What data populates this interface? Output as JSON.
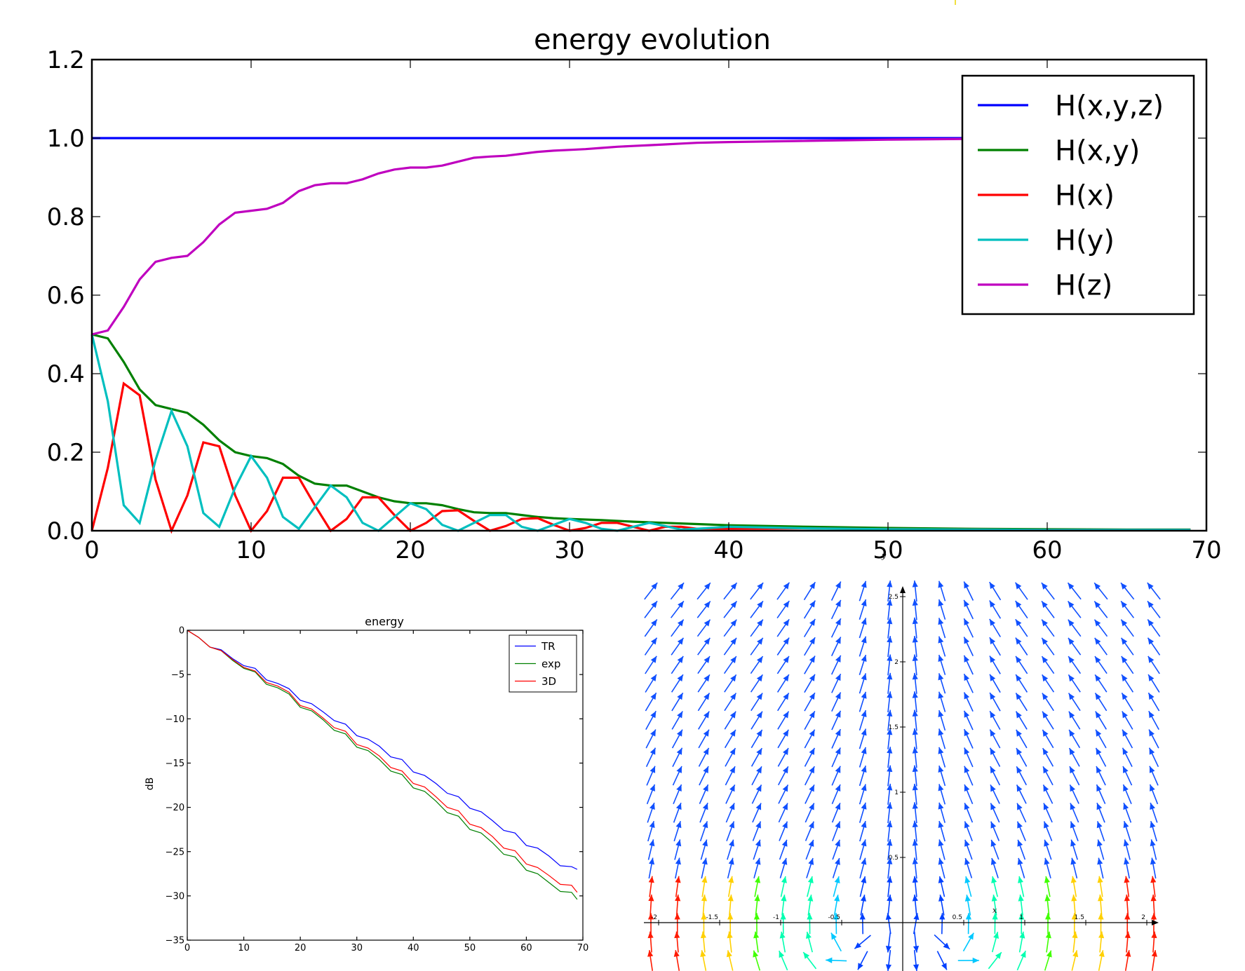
{
  "chart_data": [
    {
      "id": "energy-evolution",
      "type": "line",
      "title": "energy evolution",
      "xlabel": "",
      "ylabel": "",
      "xlim": [
        0,
        70
      ],
      "ylim": [
        0,
        1.2
      ],
      "xticks": [
        0,
        10,
        20,
        30,
        40,
        50,
        60,
        70
      ],
      "yticks": [
        0.0,
        0.2,
        0.4,
        0.6,
        0.8,
        1.0,
        1.2
      ],
      "ytick_labels": [
        "0.0",
        "0.2",
        "0.4",
        "0.6",
        "0.8",
        "1.0",
        "1.2"
      ],
      "grid": false,
      "legend": "top-right",
      "series": [
        {
          "name": "H(x,y,z)",
          "color": "#0000ff",
          "x": [
            0,
            69
          ],
          "y": [
            1.0,
            1.0
          ]
        },
        {
          "name": "H(x,y)",
          "color": "#008000",
          "x": [
            0,
            1,
            2,
            3,
            4,
            5,
            6,
            7,
            8,
            9,
            10,
            11,
            12,
            13,
            14,
            15,
            16,
            17,
            18,
            19,
            20,
            21,
            22,
            23,
            24,
            25,
            26,
            27,
            28,
            29,
            30,
            32,
            34,
            36,
            38,
            40,
            45,
            50,
            55,
            60,
            65,
            69
          ],
          "y": [
            0.5,
            0.49,
            0.43,
            0.36,
            0.32,
            0.31,
            0.3,
            0.27,
            0.23,
            0.2,
            0.19,
            0.185,
            0.17,
            0.14,
            0.12,
            0.115,
            0.115,
            0.1,
            0.085,
            0.075,
            0.07,
            0.07,
            0.065,
            0.055,
            0.047,
            0.045,
            0.045,
            0.04,
            0.035,
            0.032,
            0.03,
            0.027,
            0.023,
            0.02,
            0.017,
            0.014,
            0.01,
            0.007,
            0.005,
            0.004,
            0.003,
            0.003
          ]
        },
        {
          "name": "H(x)",
          "color": "#ff0000",
          "x": [
            0,
            1,
            2,
            3,
            4,
            5,
            6,
            7,
            8,
            9,
            10,
            11,
            12,
            13,
            14,
            15,
            16,
            17,
            18,
            19,
            20,
            21,
            22,
            23,
            24,
            25,
            26,
            27,
            28,
            29,
            30,
            31,
            32,
            33,
            34,
            35,
            36,
            37,
            38,
            40,
            45,
            50,
            55,
            60,
            65,
            69
          ],
          "y": [
            0.0,
            0.16,
            0.375,
            0.345,
            0.13,
            0.0,
            0.09,
            0.225,
            0.215,
            0.09,
            0.0,
            0.05,
            0.135,
            0.135,
            0.065,
            0.0,
            0.03,
            0.085,
            0.085,
            0.04,
            0.0,
            0.02,
            0.05,
            0.052,
            0.025,
            0.0,
            0.012,
            0.03,
            0.032,
            0.015,
            0.0,
            0.007,
            0.02,
            0.02,
            0.01,
            0.0,
            0.01,
            0.01,
            0.005,
            0.005,
            0.006,
            0.004,
            0.003,
            0.002,
            0.002,
            0.002
          ]
        },
        {
          "name": "H(y)",
          "color": "#00bfbf",
          "x": [
            0,
            1,
            2,
            3,
            4,
            5,
            6,
            7,
            8,
            9,
            10,
            11,
            12,
            13,
            14,
            15,
            16,
            17,
            18,
            19,
            20,
            21,
            22,
            23,
            24,
            25,
            26,
            27,
            28,
            29,
            30,
            31,
            32,
            33,
            34,
            35,
            36,
            37,
            38,
            40,
            45,
            50,
            55,
            60,
            65,
            69
          ],
          "y": [
            0.5,
            0.33,
            0.065,
            0.02,
            0.18,
            0.305,
            0.215,
            0.045,
            0.01,
            0.11,
            0.19,
            0.135,
            0.035,
            0.005,
            0.06,
            0.115,
            0.085,
            0.02,
            0.0,
            0.035,
            0.07,
            0.055,
            0.015,
            0.0,
            0.02,
            0.04,
            0.04,
            0.01,
            0.0,
            0.015,
            0.03,
            0.02,
            0.005,
            0.0,
            0.01,
            0.02,
            0.012,
            0.003,
            0.005,
            0.01,
            0.006,
            0.004,
            0.003,
            0.002,
            0.002,
            0.002
          ]
        },
        {
          "name": "H(z)",
          "color": "#bf00bf",
          "x": [
            0,
            1,
            2,
            3,
            4,
            5,
            6,
            7,
            8,
            9,
            10,
            11,
            12,
            13,
            14,
            15,
            16,
            17,
            18,
            19,
            20,
            21,
            22,
            23,
            24,
            25,
            26,
            27,
            28,
            29,
            30,
            31,
            32,
            33,
            34,
            35,
            36,
            37,
            38,
            40,
            45,
            50,
            55,
            60,
            65,
            69
          ],
          "y": [
            0.5,
            0.51,
            0.57,
            0.64,
            0.685,
            0.695,
            0.7,
            0.735,
            0.78,
            0.81,
            0.815,
            0.82,
            0.835,
            0.865,
            0.88,
            0.885,
            0.885,
            0.895,
            0.91,
            0.92,
            0.925,
            0.925,
            0.93,
            0.94,
            0.95,
            0.953,
            0.955,
            0.96,
            0.965,
            0.968,
            0.97,
            0.972,
            0.975,
            0.978,
            0.98,
            0.982,
            0.984,
            0.986,
            0.988,
            0.99,
            0.993,
            0.996,
            0.998,
            0.999,
            1.0,
            1.0
          ]
        }
      ]
    },
    {
      "id": "energy",
      "type": "line",
      "title": "energy",
      "xlabel": "",
      "ylabel": "dB",
      "xlim": [
        0,
        70
      ],
      "ylim": [
        -35,
        0
      ],
      "xticks": [
        0,
        10,
        20,
        30,
        40,
        50,
        60,
        70
      ],
      "yticks": [
        0,
        -5,
        -10,
        -15,
        -20,
        -25,
        -30,
        -35
      ],
      "ytick_labels": [
        "0",
        "−5",
        "−10",
        "−15",
        "−20",
        "−25",
        "−30",
        "−35"
      ],
      "grid": false,
      "legend": "top-right",
      "series": [
        {
          "name": "TR",
          "color": "#0000ff",
          "x": [
            0,
            2,
            4,
            6,
            8,
            10,
            12,
            14,
            16,
            18,
            20,
            22,
            24,
            26,
            28,
            30,
            32,
            34,
            36,
            38,
            40,
            42,
            44,
            46,
            48,
            50,
            52,
            54,
            56,
            58,
            60,
            62,
            64,
            66,
            68,
            69
          ],
          "y": [
            0,
            -0.8,
            -1.9,
            -2.2,
            -3.2,
            -4.0,
            -4.3,
            -5.6,
            -6.0,
            -6.6,
            -7.9,
            -8.3,
            -9.2,
            -10.2,
            -10.6,
            -11.9,
            -12.3,
            -13.1,
            -14.3,
            -14.6,
            -16.0,
            -16.4,
            -17.3,
            -18.4,
            -18.8,
            -20.1,
            -20.5,
            -21.5,
            -22.6,
            -22.9,
            -24.3,
            -24.6,
            -25.5,
            -26.6,
            -26.7,
            -27.0
          ]
        },
        {
          "name": "exp",
          "color": "#008000",
          "x": [
            0,
            2,
            4,
            6,
            8,
            10,
            12,
            14,
            16,
            18,
            20,
            22,
            24,
            26,
            28,
            30,
            32,
            34,
            36,
            38,
            40,
            42,
            44,
            46,
            48,
            50,
            52,
            54,
            56,
            58,
            60,
            62,
            64,
            66,
            68,
            69
          ],
          "y": [
            0,
            -0.8,
            -1.9,
            -2.3,
            -3.4,
            -4.3,
            -4.7,
            -6.1,
            -6.5,
            -7.2,
            -8.7,
            -9.1,
            -10.1,
            -11.3,
            -11.7,
            -13.2,
            -13.6,
            -14.6,
            -15.9,
            -16.3,
            -17.8,
            -18.2,
            -19.3,
            -20.6,
            -21.0,
            -22.5,
            -22.9,
            -24.0,
            -25.3,
            -25.6,
            -27.1,
            -27.5,
            -28.5,
            -29.5,
            -29.6,
            -30.4
          ]
        },
        {
          "name": "3D",
          "color": "#ff0000",
          "x": [
            0,
            2,
            4,
            6,
            8,
            10,
            12,
            14,
            16,
            18,
            20,
            22,
            24,
            26,
            28,
            30,
            32,
            34,
            36,
            38,
            40,
            42,
            44,
            46,
            48,
            50,
            52,
            54,
            56,
            58,
            60,
            62,
            64,
            66,
            68,
            69
          ],
          "y": [
            0,
            -0.8,
            -1.9,
            -2.3,
            -3.3,
            -4.2,
            -4.6,
            -5.9,
            -6.3,
            -7.0,
            -8.5,
            -8.9,
            -9.9,
            -11.0,
            -11.4,
            -12.9,
            -13.3,
            -14.2,
            -15.5,
            -15.9,
            -17.3,
            -17.7,
            -18.8,
            -20.0,
            -20.4,
            -21.9,
            -22.3,
            -23.3,
            -24.6,
            -24.9,
            -26.4,
            -26.8,
            -27.7,
            -28.7,
            -28.8,
            -29.6
          ]
        }
      ]
    },
    {
      "id": "vector-field",
      "type": "quiver",
      "title": "",
      "xlabel": "x",
      "ylabel": "y",
      "xlim": [
        -2,
        2
      ],
      "ylim": [
        -0.5,
        2.75
      ],
      "x_tick_labels": [
        "-2",
        "-1.5",
        "-1",
        "-0.5",
        "0.5",
        "1",
        "1.5",
        "2"
      ],
      "y_tick_labels": [
        "2.5",
        "2",
        "1.5",
        "1",
        "0.5"
      ],
      "field": "(-y*x, y+x^2)",
      "colormap": [
        "#0040ff",
        "#00c8ff",
        "#00ffb0",
        "#40ff00",
        "#ffd000",
        "#ff1a00"
      ],
      "grid": false
    }
  ]
}
